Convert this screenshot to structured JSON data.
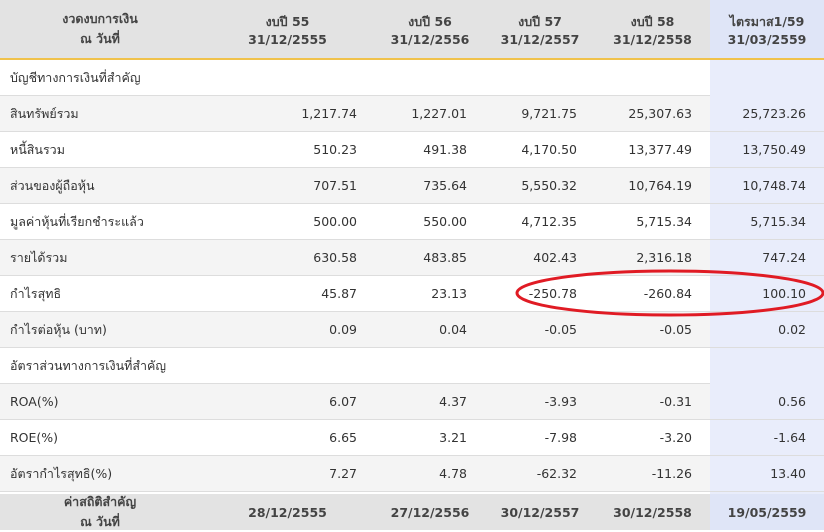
{
  "header": {
    "columns": [
      [
        "งวดงบการเงิน",
        "ณ วันที่"
      ],
      [
        "งบปี 55",
        "31/12/2555"
      ],
      [
        "งบปี 56",
        "31/12/2556"
      ],
      [
        "งบปี 57",
        "31/12/2557"
      ],
      [
        "งบปี 58",
        "31/12/2558"
      ],
      [
        "ไตรมาส1/59",
        "31/03/2559"
      ]
    ]
  },
  "sections": [
    {
      "title": "บัญชีทางการเงินที่สำคัญ",
      "rows": [
        [
          "สินทรัพย์รวม",
          "1,217.74",
          "1,227.01",
          "9,721.75",
          "25,307.63",
          "25,723.26"
        ],
        [
          "หนี้สินรวม",
          "510.23",
          "491.38",
          "4,170.50",
          "13,377.49",
          "13,750.49"
        ],
        [
          "ส่วนของผู้ถือหุ้น",
          "707.51",
          "735.64",
          "5,550.32",
          "10,764.19",
          "10,748.74"
        ],
        [
          "มูลค่าหุ้นที่เรียกชำระแล้ว",
          "500.00",
          "550.00",
          "4,712.35",
          "5,715.34",
          "5,715.34"
        ],
        [
          "รายได้รวม",
          "630.58",
          "483.85",
          "402.43",
          "2,316.18",
          "747.24"
        ],
        [
          "กำไรสุทธิ",
          "45.87",
          "23.13",
          "-250.78",
          "-260.84",
          "100.10"
        ],
        [
          "กำไรต่อหุ้น (บาท)",
          "0.09",
          "0.04",
          "-0.05",
          "-0.05",
          "0.02"
        ]
      ]
    },
    {
      "title": "อัตราส่วนทางการเงินที่สำคัญ",
      "rows": [
        [
          "ROA(%)",
          "6.07",
          "4.37",
          "-3.93",
          "-0.31",
          "0.56"
        ],
        [
          "ROE(%)",
          "6.65",
          "3.21",
          "-7.98",
          "-3.20",
          "-1.64"
        ],
        [
          "อัตรากำไรสุทธิ(%)",
          "7.27",
          "4.78",
          "-62.32",
          "-11.26",
          "13.40"
        ]
      ]
    }
  ],
  "footer": {
    "columns": [
      [
        "ค่าสถิติสำคัญ",
        "ณ วันที่"
      ],
      [
        "28/12/2555"
      ],
      [
        "27/12/2556"
      ],
      [
        "30/12/2557"
      ],
      [
        "30/12/2558"
      ],
      [
        "19/05/2559"
      ]
    ]
  }
}
